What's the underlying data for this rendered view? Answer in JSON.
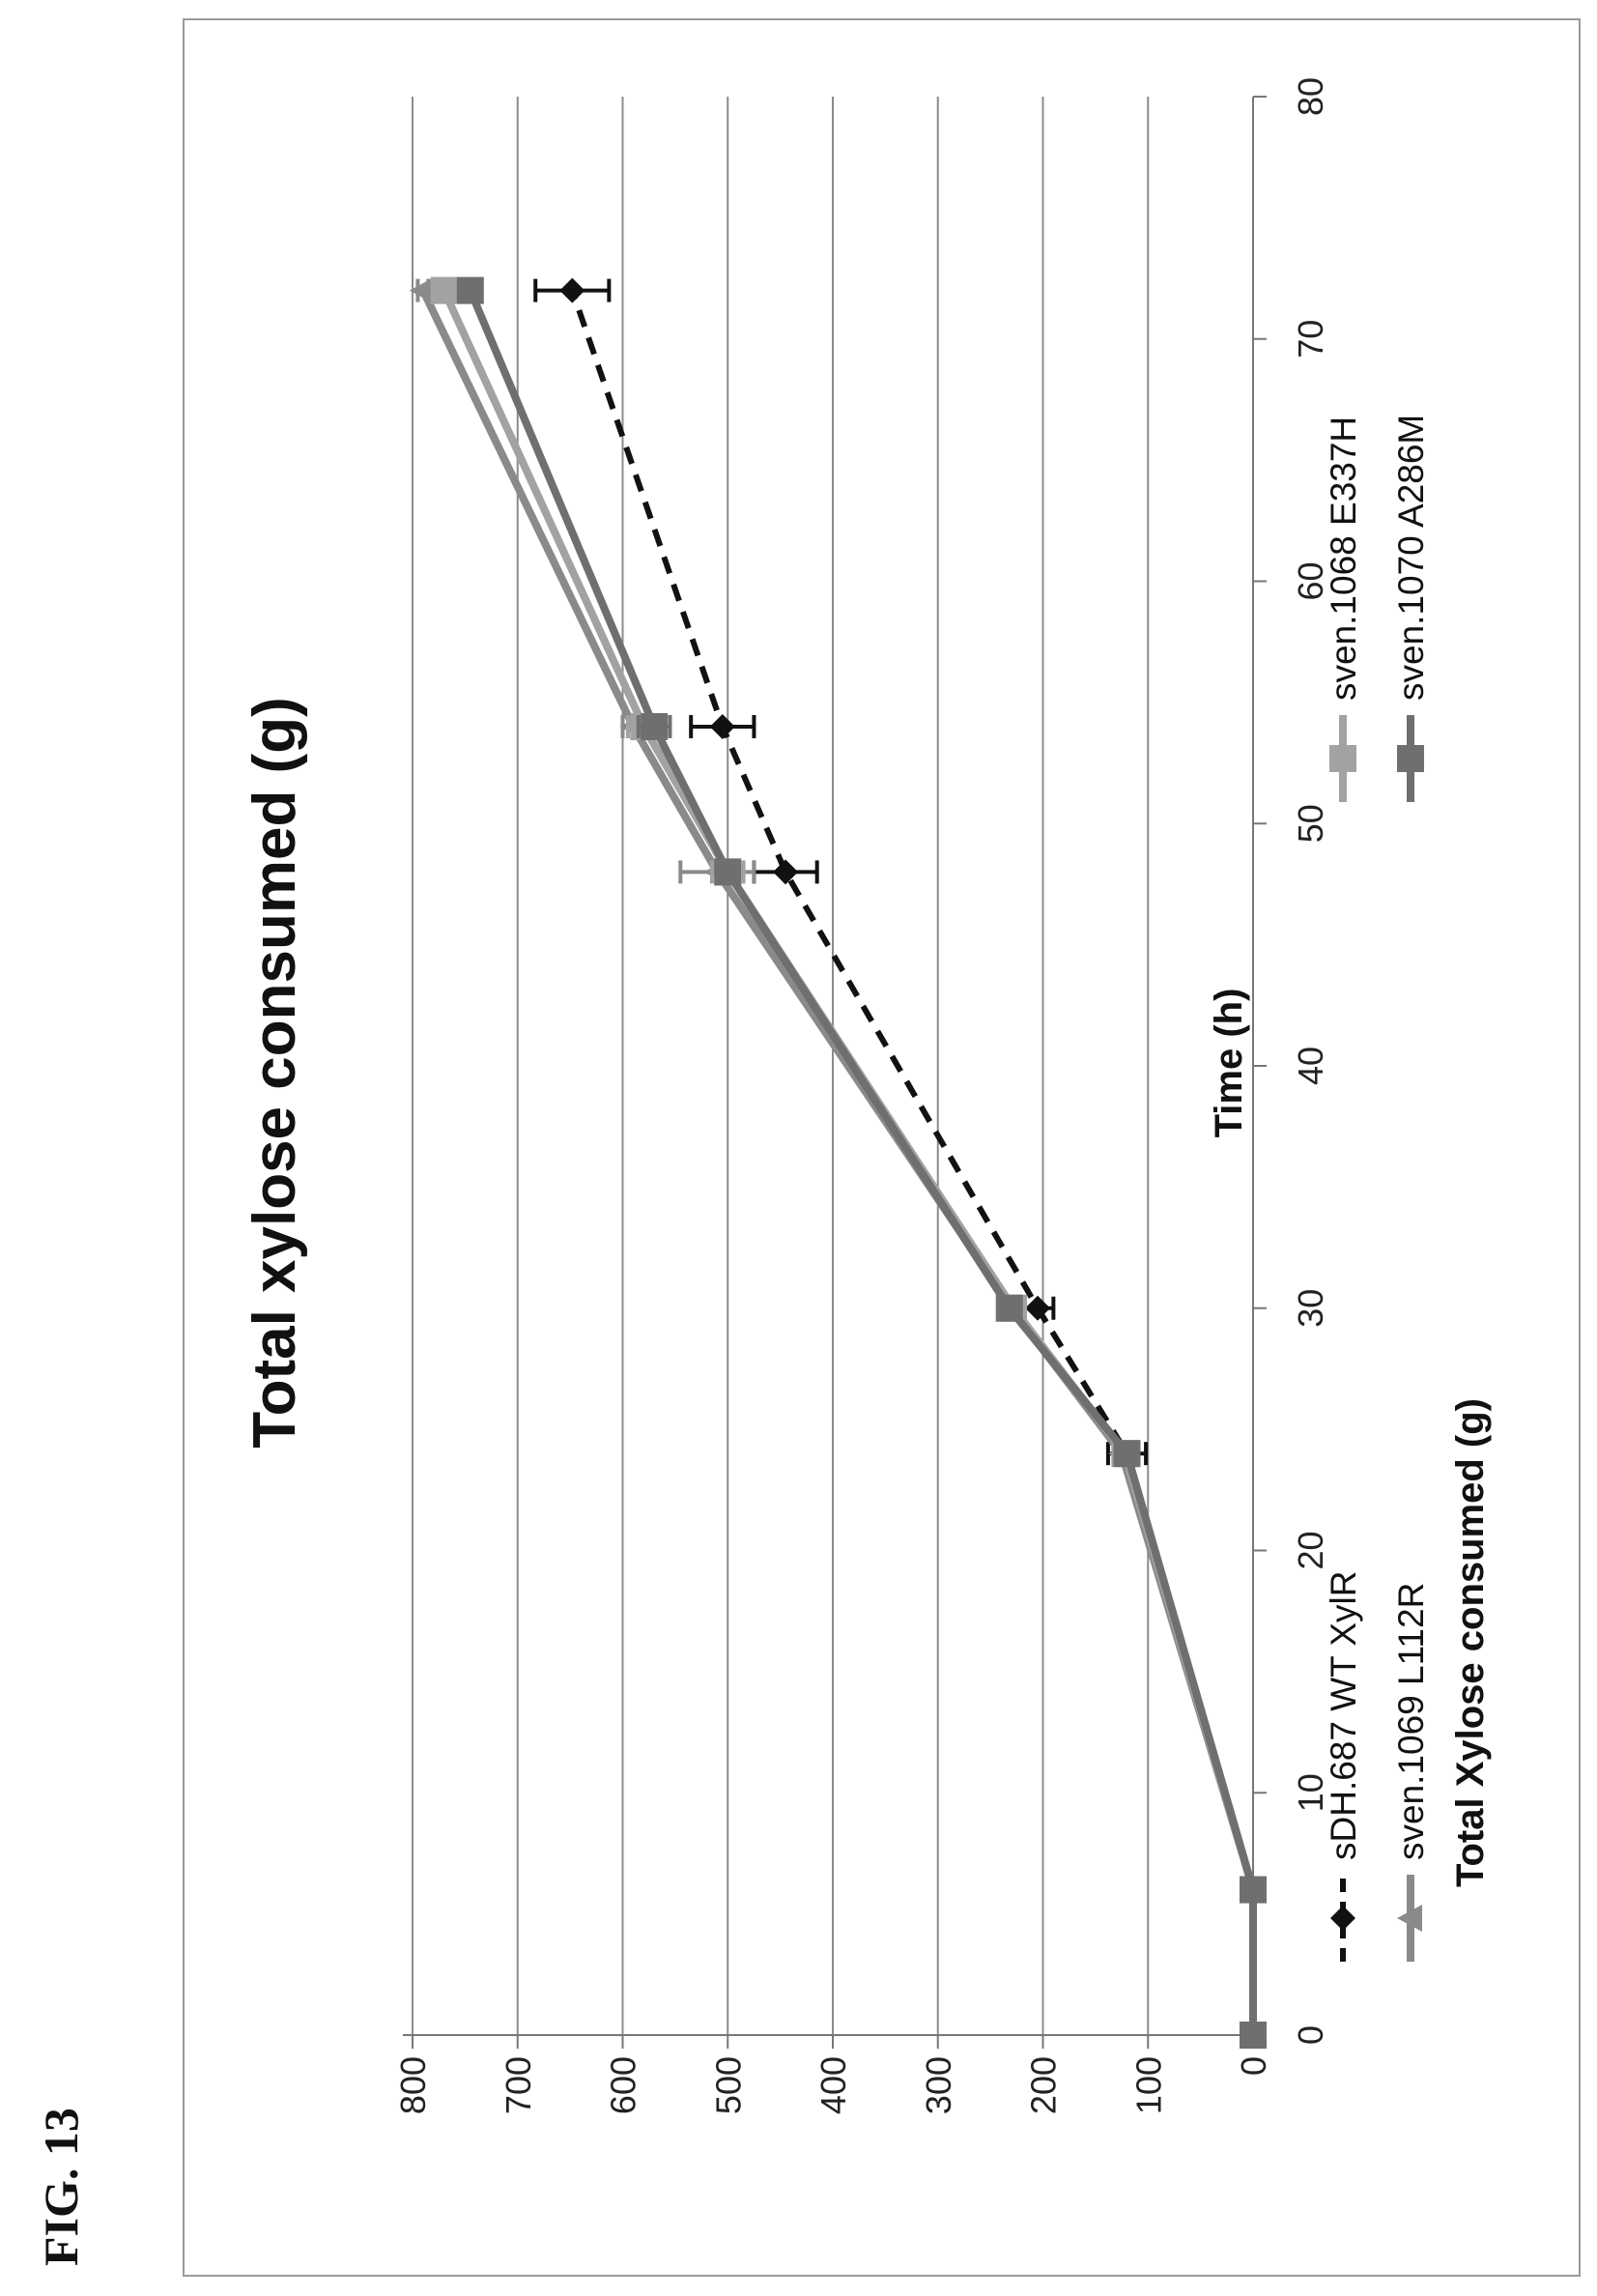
{
  "figure_label": "FIG. 13",
  "chart_data": {
    "type": "line",
    "title": "Total xylose consumed (g)",
    "xlabel": "Time (h)",
    "ylabel": "Total Xylose consumed (g)",
    "xlim": [
      0,
      80
    ],
    "ylim": [
      0,
      800
    ],
    "x_ticks": [
      "0",
      "10",
      "20",
      "30",
      "40",
      "50",
      "60",
      "70",
      "80"
    ],
    "y_ticks": [
      "0",
      "100",
      "200",
      "300",
      "400",
      "500",
      "600",
      "700",
      "800"
    ],
    "grid": "horizontal",
    "legend_position": "bottom",
    "orientation": "rotated 90° counter-clockwise on page",
    "series": [
      {
        "name": "sDH.687 WT XylR",
        "style": "dashed",
        "marker": "diamond",
        "color": "#111111",
        "x": [
          0,
          6,
          24,
          30,
          48,
          54,
          72
        ],
        "y": [
          0,
          0,
          120,
          205,
          445,
          505,
          648
        ],
        "error": [
          0,
          0,
          18,
          15,
          30,
          30,
          35
        ]
      },
      {
        "name": "sven.1069 L112R",
        "style": "solid",
        "marker": "triangle",
        "color": "#8a8a8a",
        "x": [
          0,
          6,
          24,
          30,
          48,
          54,
          72
        ],
        "y": [
          0,
          0,
          125,
          230,
          510,
          590,
          790
        ],
        "error": [
          0,
          0,
          5,
          5,
          35,
          10,
          5
        ]
      },
      {
        "name": "sven.1068 E337H",
        "style": "solid",
        "marker": "square",
        "color": "#a2a2a2",
        "x": [
          0,
          6,
          24,
          30,
          48,
          54,
          72
        ],
        "y": [
          0,
          0,
          122,
          228,
          500,
          580,
          770
        ],
        "error": [
          0,
          0,
          5,
          5,
          15,
          15,
          10
        ]
      },
      {
        "name": "sven.1070 A286M",
        "style": "solid",
        "marker": "square",
        "color": "#6f6f6f",
        "x": [
          0,
          6,
          24,
          30,
          48,
          54,
          72
        ],
        "y": [
          0,
          0,
          120,
          232,
          500,
          570,
          745
        ],
        "error": [
          0,
          0,
          5,
          5,
          10,
          15,
          10
        ]
      }
    ]
  }
}
